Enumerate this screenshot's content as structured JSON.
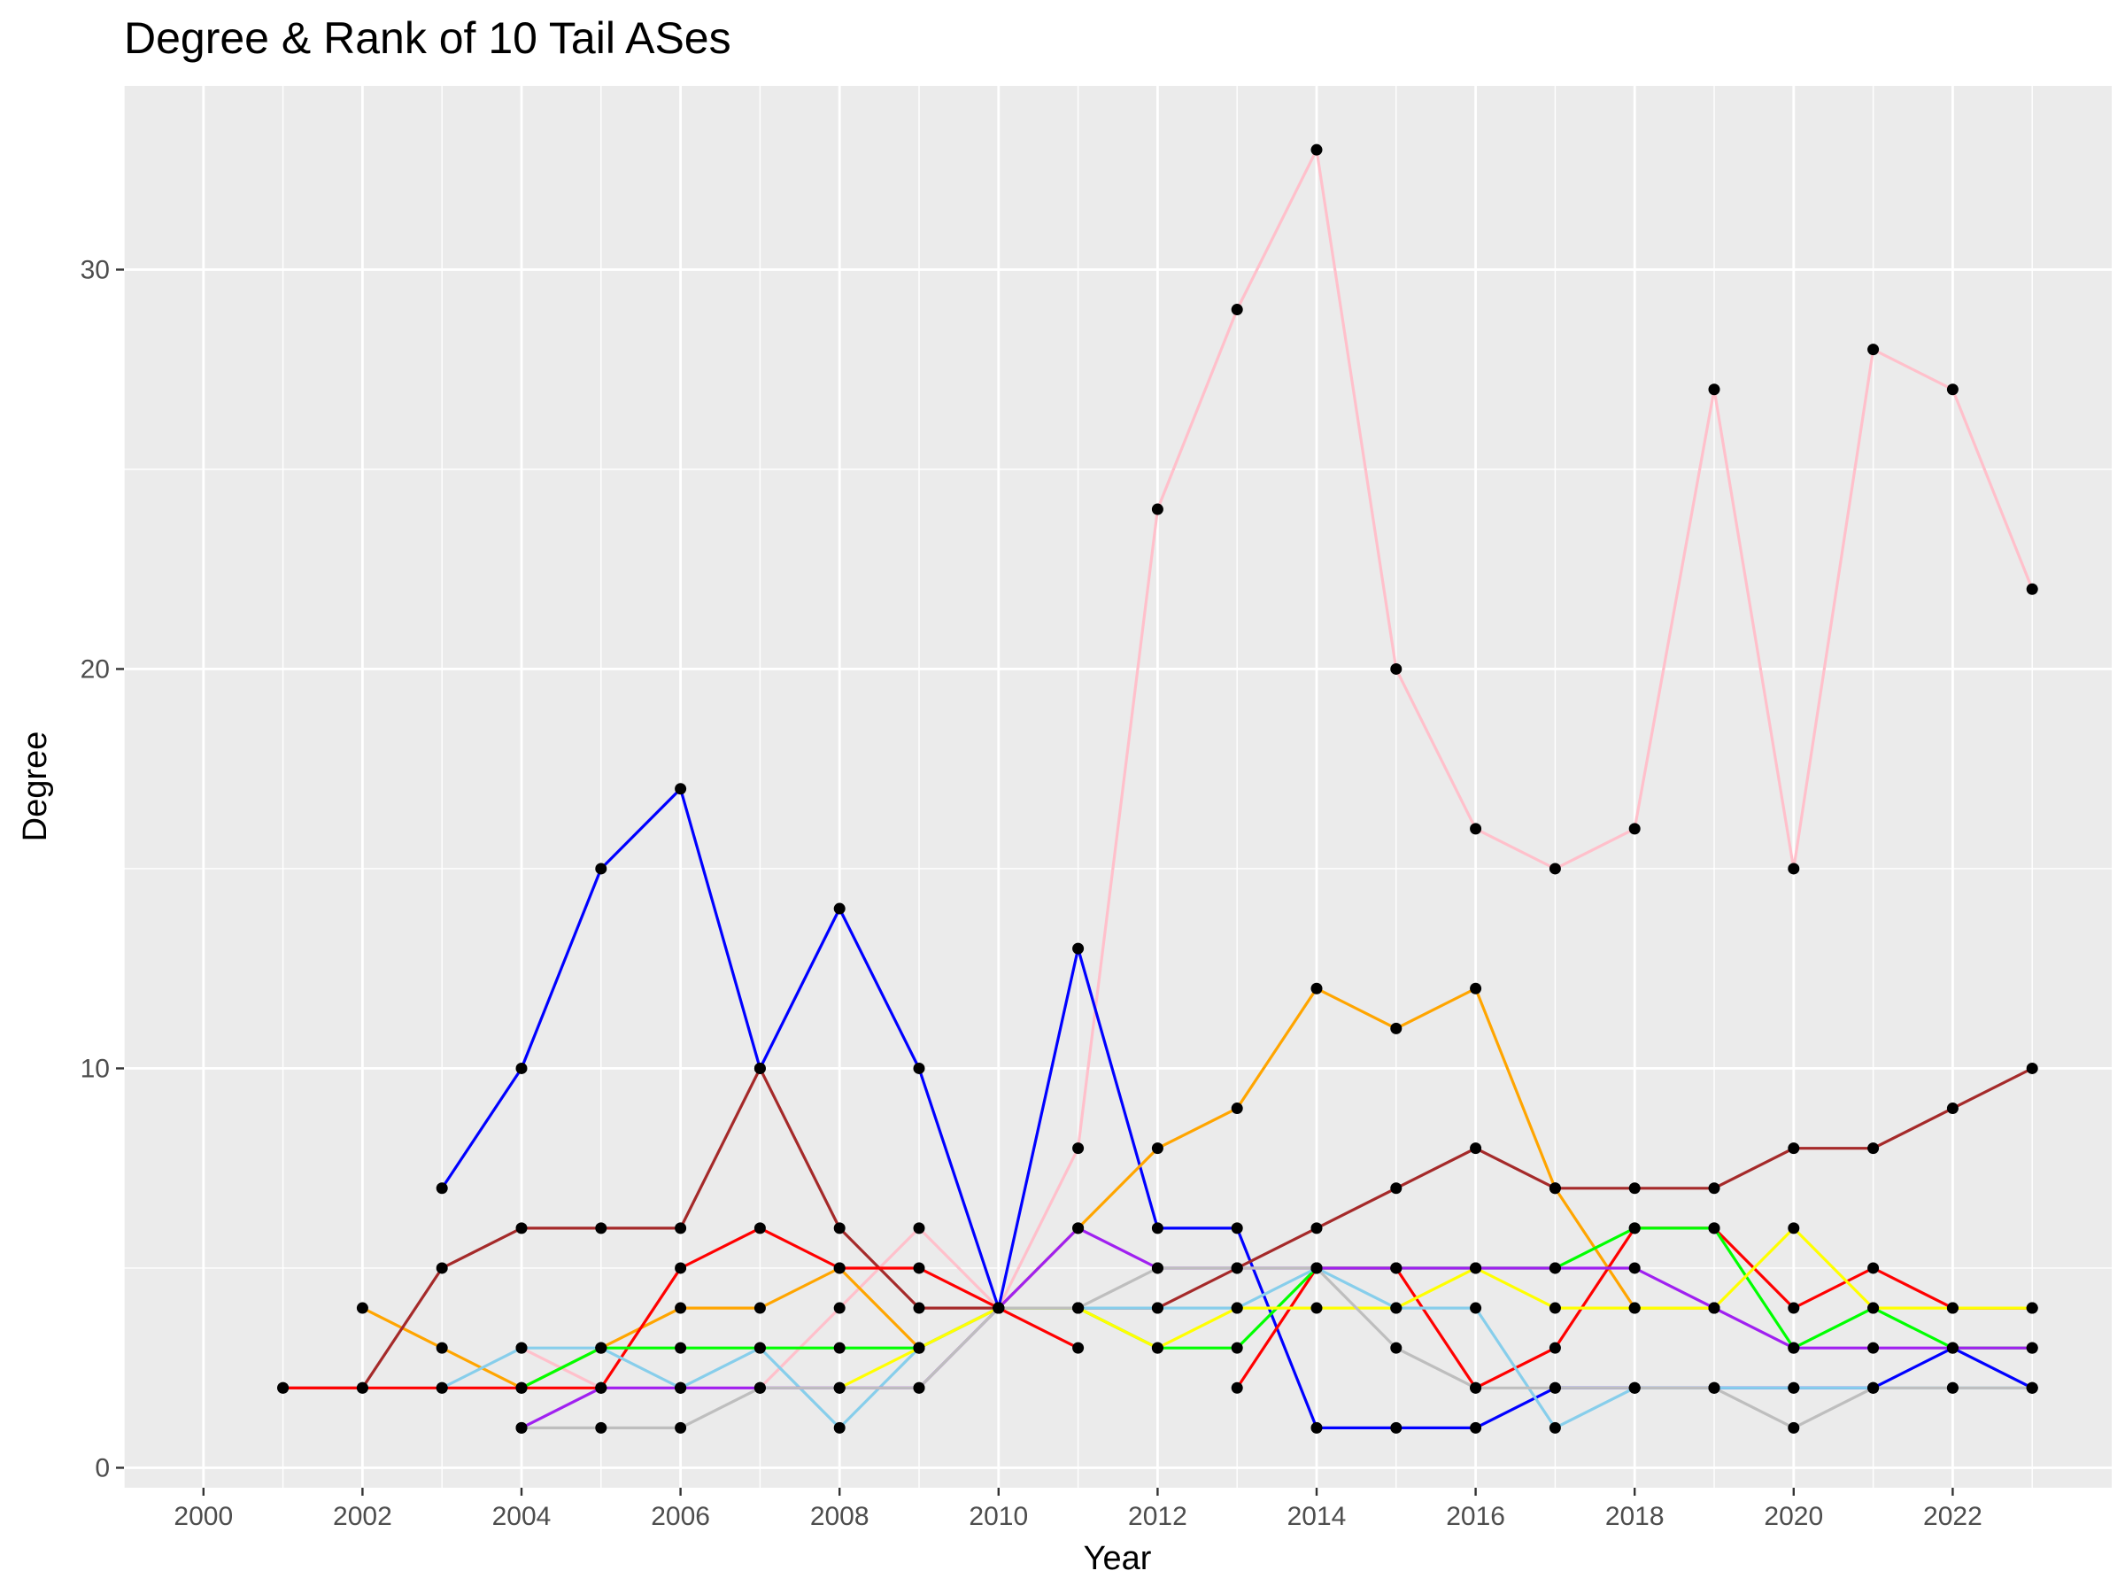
{
  "chart_data": {
    "type": "line",
    "title": "Degree & Rank of 10 Tail ASes",
    "xlabel": "Year",
    "ylabel": "Degree",
    "xlim": [
      1999,
      2024
    ],
    "ylim": [
      -0.5,
      34.6
    ],
    "x_ticks": [
      2000,
      2002,
      2004,
      2006,
      2008,
      2010,
      2012,
      2014,
      2016,
      2018,
      2020,
      2022
    ],
    "y_ticks": [
      0,
      10,
      20,
      30
    ],
    "grid": true,
    "legend": "none",
    "panel_background": "#ebebeb",
    "point_color": "#000000",
    "series": [
      {
        "color": "#ffc0cb",
        "x": [
          2004,
          2005,
          2006,
          2007,
          2008,
          2009,
          2010,
          2011,
          2012,
          2013,
          2014,
          2015,
          2016,
          2017,
          2018,
          2019,
          2020,
          2021,
          2022,
          2023
        ],
        "values": [
          3,
          2,
          2,
          2,
          4,
          6,
          4,
          8,
          24,
          29,
          33,
          20,
          16,
          15,
          16,
          27,
          15,
          28,
          27,
          22
        ]
      },
      {
        "color": "#0000ff",
        "x": [
          2003,
          2004,
          2005,
          2006,
          2007,
          2008,
          2009,
          2010,
          2011,
          2012,
          2013,
          2014,
          2015,
          2016,
          2017,
          2018,
          2019,
          2020,
          2021,
          2022,
          2023
        ],
        "values": [
          7,
          10,
          15,
          17,
          10,
          14,
          10,
          4,
          13,
          6,
          6,
          1,
          1,
          1,
          2,
          2,
          2,
          2,
          2,
          3,
          2
        ]
      },
      {
        "color": "#ffa500",
        "x": [
          2002,
          2003,
          2004,
          2005,
          2006,
          2007,
          2008,
          2009,
          2010,
          2011,
          2012,
          2013,
          2014,
          2015,
          2016,
          2017,
          2018,
          2019
        ],
        "values": [
          4,
          3,
          2,
          3,
          4,
          4,
          5,
          3,
          4,
          6,
          8,
          9,
          12,
          11,
          12,
          7,
          4,
          4
        ]
      },
      {
        "color": "#a52a2a",
        "x": [
          2001,
          2002,
          2003,
          2004,
          2005,
          2006,
          2007,
          2008,
          2009,
          2010,
          2011,
          2012,
          2013,
          2014,
          2015,
          2016,
          2017,
          2018,
          2019,
          2020,
          2021,
          2022,
          2023
        ],
        "values": [
          2,
          2,
          5,
          6,
          6,
          6,
          10,
          6,
          4,
          4,
          4,
          4,
          5,
          6,
          7,
          8,
          7,
          7,
          7,
          8,
          8,
          9,
          10
        ]
      },
      {
        "color": "#ff0000",
        "x": [
          2001,
          2002,
          2003,
          2004,
          2005,
          2006,
          2007,
          2008,
          2009,
          2010,
          2011
        ],
        "values": [
          2,
          2,
          2,
          2,
          2,
          5,
          6,
          5,
          5,
          4,
          3
        ]
      },
      {
        "color": "#ff0000",
        "x": [
          2013,
          2014,
          2015,
          2016,
          2017,
          2018,
          2019,
          2020,
          2021,
          2022,
          2023
        ],
        "values": [
          2,
          5,
          5,
          2,
          3,
          6,
          6,
          4,
          5,
          4,
          4
        ]
      },
      {
        "color": "#00ff00",
        "x": [
          2004,
          2005,
          2006,
          2007,
          2008,
          2009,
          2010,
          2011,
          2012,
          2013,
          2014,
          2015,
          2016,
          2017,
          2018,
          2019,
          2020,
          2021,
          2022,
          2023
        ],
        "values": [
          2,
          3,
          3,
          3,
          3,
          3,
          4,
          4,
          3,
          3,
          5,
          5,
          5,
          5,
          6,
          6,
          3,
          4,
          3,
          3
        ]
      },
      {
        "color": "#87ceeb",
        "x": [
          2003,
          2004,
          2005,
          2006,
          2007,
          2008,
          2009,
          2010,
          2011,
          2012,
          2013,
          2014,
          2015,
          2016,
          2017,
          2018,
          2019,
          2020,
          2021,
          2022,
          2023
        ],
        "values": [
          2,
          3,
          3,
          2,
          3,
          1,
          3,
          4,
          4,
          4,
          4,
          5,
          4,
          4,
          1,
          2,
          2,
          2,
          2,
          2,
          2
        ]
      },
      {
        "color": "#ffff00",
        "x": [
          2008,
          2009,
          2010,
          2011,
          2012,
          2013,
          2014,
          2015,
          2016,
          2017,
          2018,
          2019,
          2020,
          2021,
          2022,
          2023
        ],
        "values": [
          2,
          3,
          4,
          4,
          3,
          4,
          4,
          4,
          5,
          4,
          4,
          4,
          6,
          4,
          4,
          4
        ]
      },
      {
        "color": "#a020f0",
        "x": [
          2004,
          2005,
          2006,
          2007,
          2008,
          2009,
          2010,
          2011,
          2012,
          2013,
          2014,
          2015,
          2016,
          2017,
          2018,
          2019,
          2020,
          2021,
          2022,
          2023
        ],
        "values": [
          1,
          2,
          2,
          2,
          2,
          2,
          4,
          6,
          5,
          5,
          5,
          5,
          5,
          5,
          5,
          4,
          3,
          3,
          3,
          3
        ]
      },
      {
        "color": "#bebebe",
        "x": [
          2004,
          2005,
          2006,
          2007,
          2008,
          2009,
          2010,
          2011,
          2012,
          2013,
          2014,
          2015,
          2016,
          2017,
          2018,
          2019,
          2020,
          2021,
          2022,
          2023
        ],
        "values": [
          1,
          1,
          1,
          2,
          2,
          2,
          4,
          4,
          5,
          5,
          5,
          3,
          2,
          2,
          2,
          2,
          1,
          2,
          2,
          2
        ]
      }
    ]
  }
}
